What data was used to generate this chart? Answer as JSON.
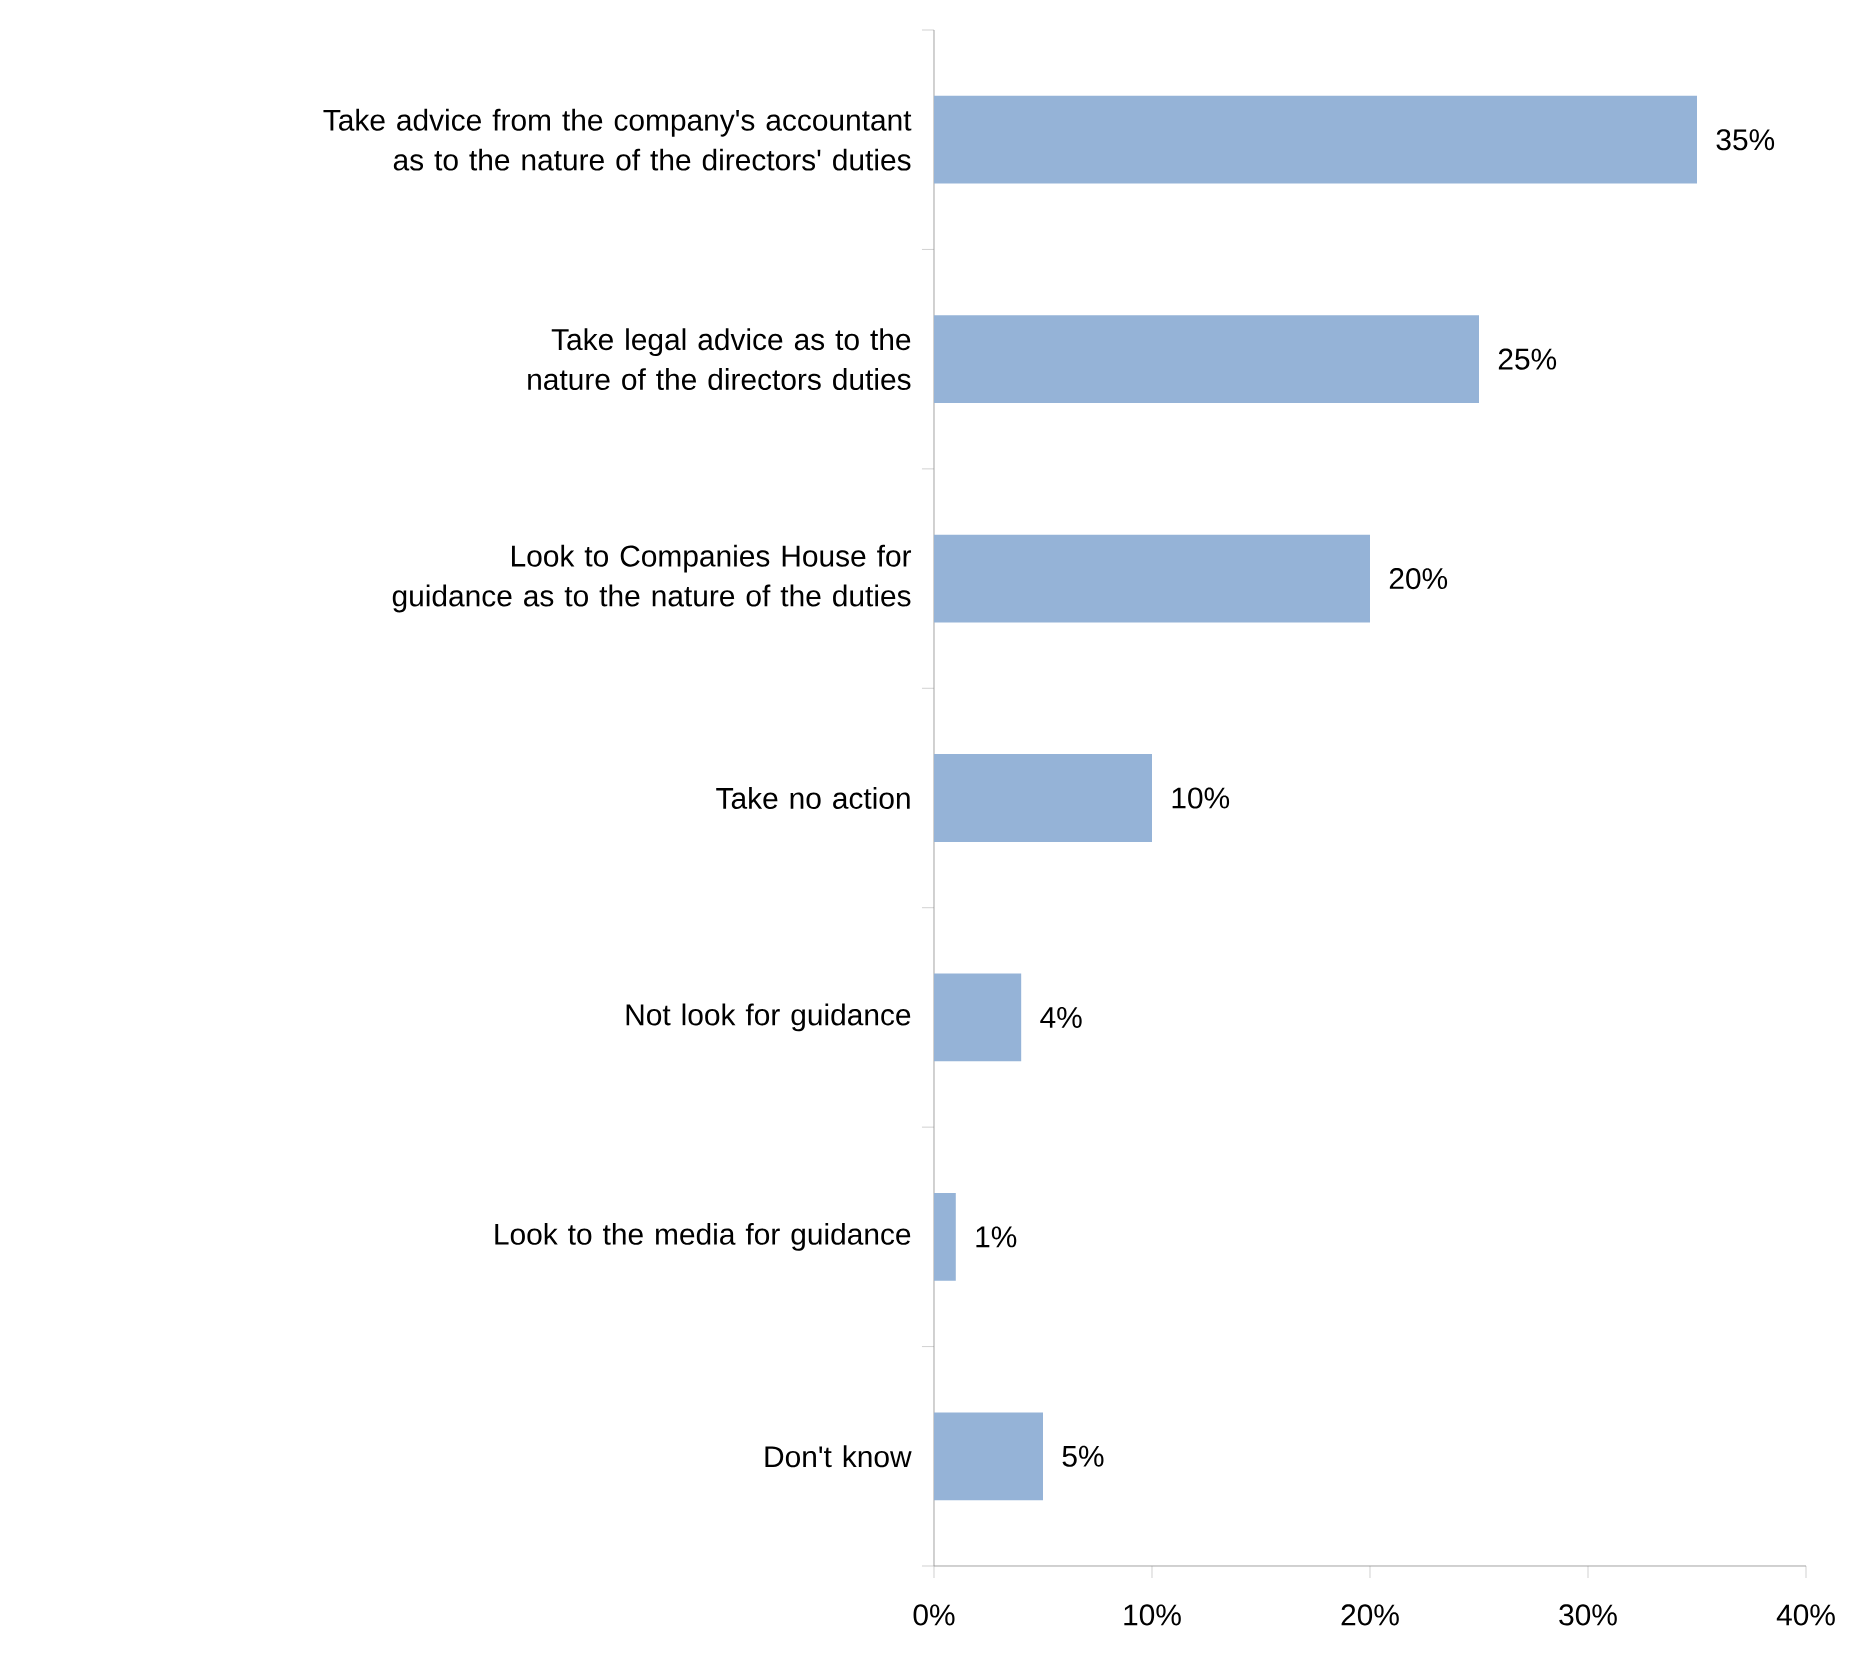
{
  "chart_data": {
    "type": "bar",
    "orientation": "horizontal",
    "categories": [
      "Take advice from the company's accountant as to the nature of the directors' duties",
      "Take legal advice as to the nature of the directors duties",
      "Look to Companies House for guidance as to the nature of the duties",
      "Take no action",
      "Not look for guidance",
      "Look to the media for guidance",
      "Don't know"
    ],
    "values": [
      35,
      25,
      20,
      10,
      4,
      1,
      5
    ],
    "value_labels": [
      "35%",
      "25%",
      "20%",
      "10%",
      "4%",
      "1%",
      "5%"
    ],
    "color": "#95b3d7",
    "xlim": [
      0,
      40
    ],
    "xticks": [
      {
        "value": 0,
        "label": "0%"
      },
      {
        "value": 10,
        "label": "10%"
      },
      {
        "value": 20,
        "label": "20%"
      },
      {
        "value": 30,
        "label": "30%"
      },
      {
        "value": 40,
        "label": "40%"
      }
    ],
    "grid": false
  }
}
